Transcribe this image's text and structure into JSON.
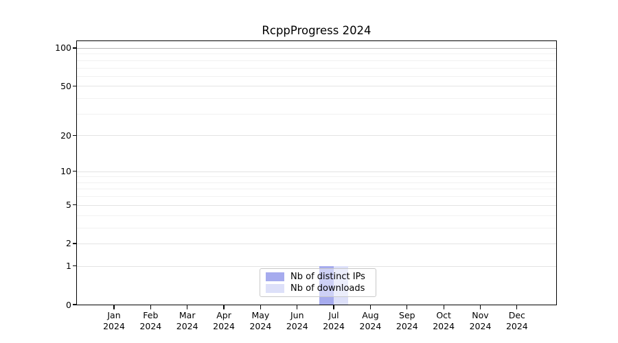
{
  "chart_data": {
    "type": "bar",
    "title": "RcppProgress 2024",
    "x": {
      "categories": [
        "Jan",
        "Feb",
        "Mar",
        "Apr",
        "May",
        "Jun",
        "Jul",
        "Aug",
        "Sep",
        "Oct",
        "Nov",
        "Dec"
      ],
      "year": "2024"
    },
    "y": {
      "scale": "log1p",
      "tick_labels": [
        0,
        1,
        2,
        5,
        10,
        20,
        50,
        100
      ],
      "minor_gridlines": [
        3,
        4,
        6,
        7,
        8,
        9,
        30,
        40,
        60,
        70,
        80,
        90
      ],
      "range": [
        0,
        113
      ]
    },
    "series": [
      {
        "name": "Nb of distinct IPs",
        "color": "#a6abee",
        "values": [
          0,
          0,
          0,
          0,
          0,
          0,
          1,
          0,
          0,
          0,
          0,
          0
        ]
      },
      {
        "name": "Nb of downloads",
        "color": "#dde0f9",
        "values": [
          0,
          0,
          0,
          0,
          0,
          0,
          1,
          0,
          0,
          0,
          0,
          0
        ]
      }
    ],
    "legend": {
      "position": "bottom-center",
      "entries": [
        "Nb of distinct IPs",
        "Nb of downloads"
      ]
    },
    "grid": true,
    "colors": {
      "axis": "#000000",
      "gridline_major_top": "#b5b5b5",
      "gridline_major": "#e3e3e3",
      "gridline_minor": "#f1f1f1"
    }
  }
}
